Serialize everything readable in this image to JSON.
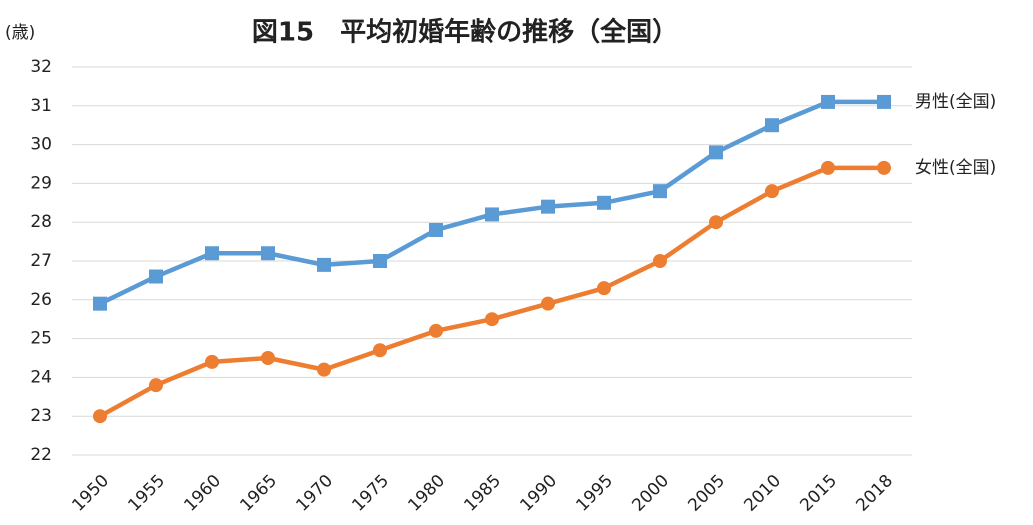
{
  "chart_data": {
    "type": "line",
    "title": "図15　平均初婚年齢の推移（全国）",
    "y_label": "(歳)",
    "categories": [
      "1950",
      "1955",
      "1960",
      "1965",
      "1970",
      "1975",
      "1980",
      "1985",
      "1990",
      "1995",
      "2000",
      "2005",
      "2010",
      "2015",
      "2018"
    ],
    "series": [
      {
        "name": "男性(全国)",
        "color": "#5b9bd5",
        "marker": "square",
        "values": [
          25.9,
          26.6,
          27.2,
          27.2,
          26.9,
          27.0,
          27.8,
          28.2,
          28.4,
          28.5,
          28.8,
          29.8,
          30.5,
          31.1,
          31.1
        ]
      },
      {
        "name": "女性(全国)",
        "color": "#ed7d31",
        "marker": "circle",
        "values": [
          23.0,
          23.8,
          24.4,
          24.5,
          24.2,
          24.7,
          25.2,
          25.5,
          25.9,
          26.3,
          27.0,
          28.0,
          28.8,
          29.4,
          29.4
        ]
      }
    ],
    "ylim": [
      22,
      32
    ],
    "yticks": [
      22,
      23,
      24,
      25,
      26,
      27,
      28,
      29,
      30,
      31,
      32
    ],
    "grid": true
  }
}
